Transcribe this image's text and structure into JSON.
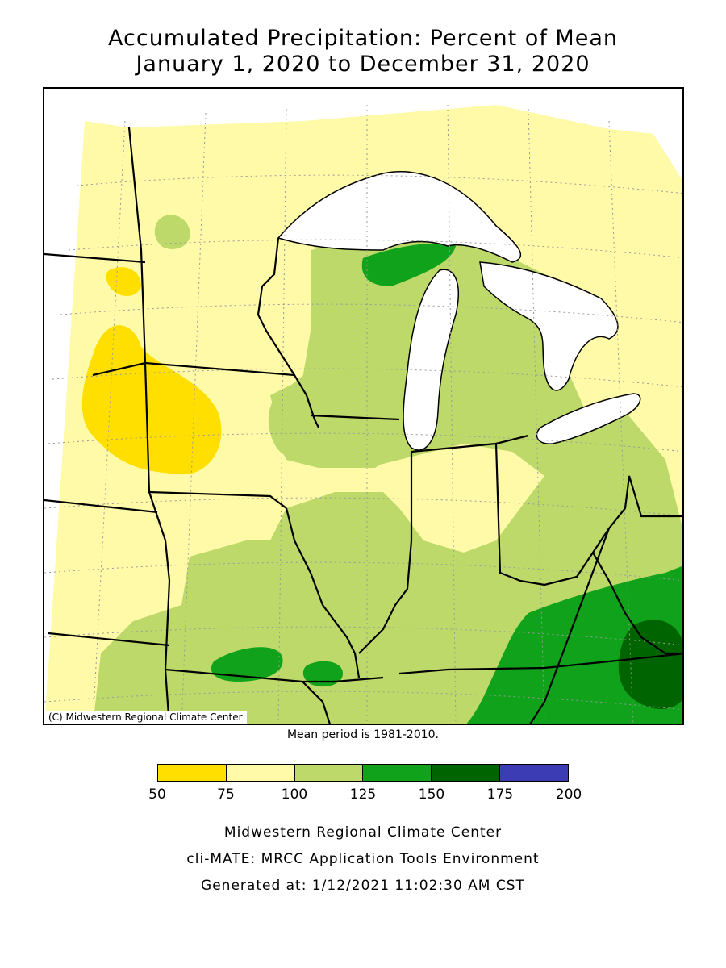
{
  "title": {
    "line1": "Accumulated Precipitation: Percent of Mean",
    "line2": "January 1, 2020 to December 31, 2020"
  },
  "map": {
    "copyright": "(C) Midwestern Regional Climate Center",
    "region": "Midwest United States"
  },
  "mean_note": "Mean period is 1981-2010.",
  "legend": {
    "bins": [
      {
        "range": "50-75",
        "color": "#ffdf00"
      },
      {
        "range": "75-100",
        "color": "#fffaa8"
      },
      {
        "range": "100-125",
        "color": "#bcd96a"
      },
      {
        "range": "125-150",
        "color": "#10a21a"
      },
      {
        "range": "150-175",
        "color": "#006400"
      },
      {
        "range": "175-200",
        "color": "#3c3cb4"
      }
    ],
    "ticks": [
      "50",
      "75",
      "100",
      "125",
      "150",
      "175",
      "200"
    ]
  },
  "footer": {
    "line1": "Midwestern Regional Climate Center",
    "line2": "cli-MATE: MRCC Application Tools Environment",
    "line3": "Generated at: 1/12/2021 11:02:30 AM CST"
  }
}
